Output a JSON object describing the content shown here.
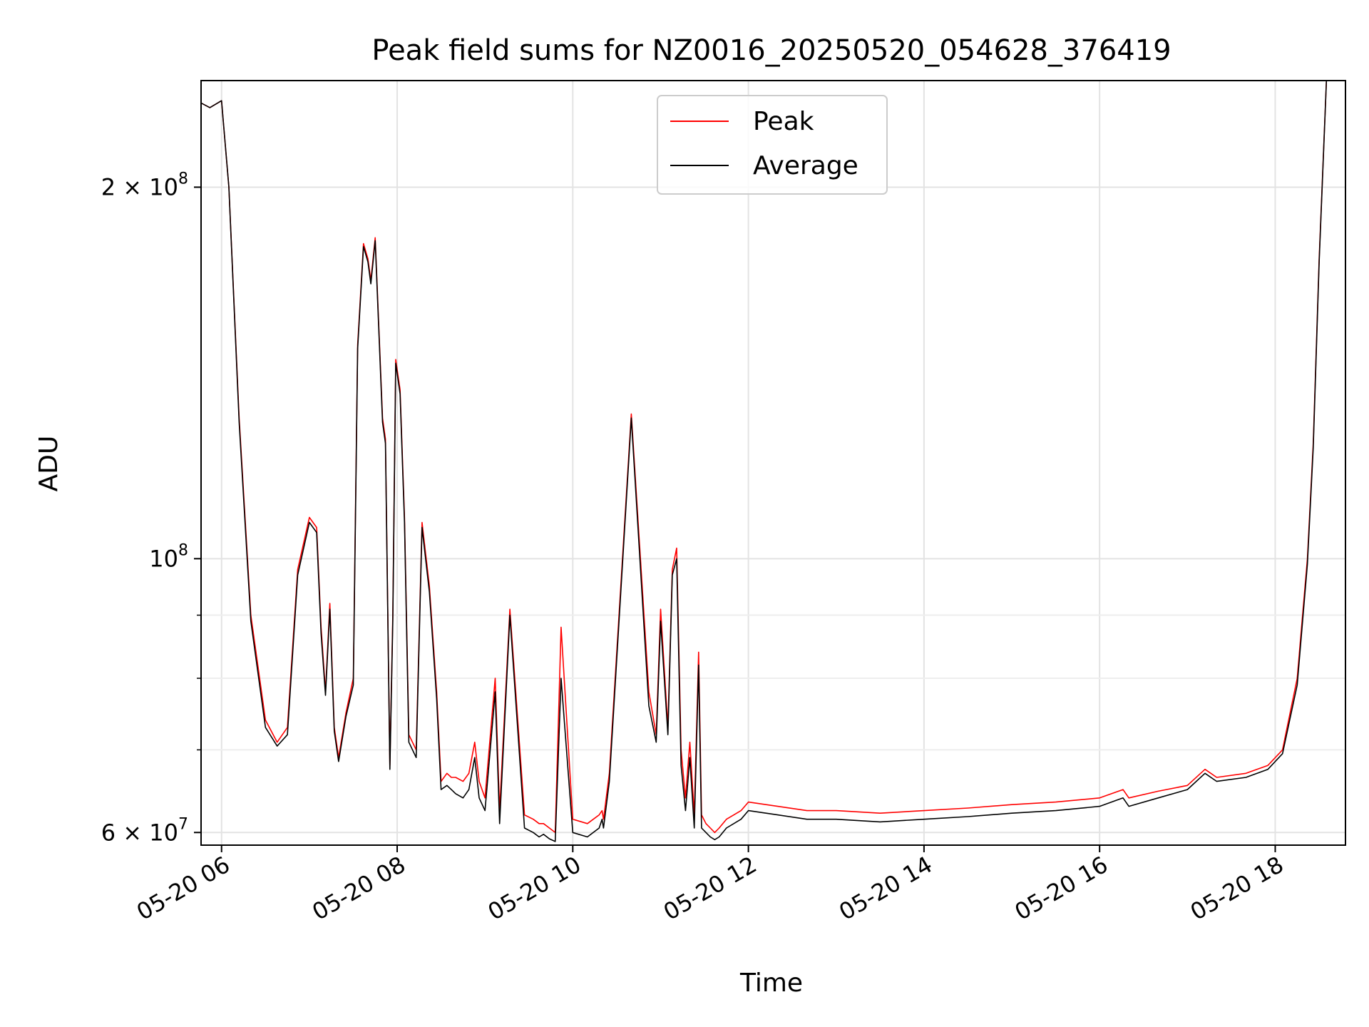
{
  "chart_data": {
    "type": "line",
    "title": "Peak field sums for NZ0016_20250520_054628_376419",
    "xlabel": "Time",
    "ylabel": "ADU",
    "yscale": "log",
    "xlim": [
      "2025-05-20 05:46",
      "2025-05-20 18:48"
    ],
    "ylim": [
      58600000,
      244000000
    ],
    "grid": true,
    "legend_position": "upper center",
    "x_ticks": [
      {
        "value": "2025-05-20 06:00",
        "label": "05-20 06"
      },
      {
        "value": "2025-05-20 08:00",
        "label": "05-20 08"
      },
      {
        "value": "2025-05-20 10:00",
        "label": "05-20 10"
      },
      {
        "value": "2025-05-20 12:00",
        "label": "05-20 12"
      },
      {
        "value": "2025-05-20 14:00",
        "label": "05-20 14"
      },
      {
        "value": "2025-05-20 16:00",
        "label": "05-20 16"
      },
      {
        "value": "2025-05-20 18:00",
        "label": "05-20 18"
      }
    ],
    "y_major_ticks": [
      {
        "value": 60000000,
        "mant": "6",
        "times": "×",
        "base": "10",
        "exp": "7"
      },
      {
        "value": 100000000,
        "mant": "",
        "times": "",
        "base": "10",
        "exp": "8"
      },
      {
        "value": 200000000,
        "mant": "2",
        "times": "×",
        "base": "10",
        "exp": "8"
      }
    ],
    "y_minor_ticks": [
      70000000,
      80000000,
      90000000
    ],
    "series": [
      {
        "name": "Peak",
        "color": "#ff0000",
        "x": [
          "2025-05-20 05:46",
          "2025-05-20 05:52",
          "2025-05-20 06:00",
          "2025-05-20 06:05",
          "2025-05-20 06:12",
          "2025-05-20 06:20",
          "2025-05-20 06:30",
          "2025-05-20 06:38",
          "2025-05-20 06:45",
          "2025-05-20 06:52",
          "2025-05-20 07:00",
          "2025-05-20 07:05",
          "2025-05-20 07:08",
          "2025-05-20 07:11",
          "2025-05-20 07:14",
          "2025-05-20 07:17",
          "2025-05-20 07:20",
          "2025-05-20 07:25",
          "2025-05-20 07:30",
          "2025-05-20 07:33",
          "2025-05-20 07:37",
          "2025-05-20 07:40",
          "2025-05-20 07:42",
          "2025-05-20 07:45",
          "2025-05-20 07:50",
          "2025-05-20 07:52",
          "2025-05-20 07:55",
          "2025-05-20 07:57",
          "2025-05-20 07:59",
          "2025-05-20 08:02",
          "2025-05-20 08:05",
          "2025-05-20 08:08",
          "2025-05-20 08:13",
          "2025-05-20 08:17",
          "2025-05-20 08:22",
          "2025-05-20 08:27",
          "2025-05-20 08:30",
          "2025-05-20 08:34",
          "2025-05-20 08:37",
          "2025-05-20 08:40",
          "2025-05-20 08:45",
          "2025-05-20 08:49",
          "2025-05-20 08:53",
          "2025-05-20 08:56",
          "2025-05-20 09:00",
          "2025-05-20 09:07",
          "2025-05-20 09:10",
          "2025-05-20 09:17",
          "2025-05-20 09:27",
          "2025-05-20 09:33",
          "2025-05-20 09:37",
          "2025-05-20 09:40",
          "2025-05-20 09:44",
          "2025-05-20 09:48",
          "2025-05-20 09:52",
          "2025-05-20 10:00",
          "2025-05-20 10:10",
          "2025-05-20 10:18",
          "2025-05-20 10:20",
          "2025-05-20 10:21",
          "2025-05-20 10:25",
          "2025-05-20 10:40",
          "2025-05-20 10:52",
          "2025-05-20 10:57",
          "2025-05-20 11:00",
          "2025-05-20 11:05",
          "2025-05-20 11:08",
          "2025-05-20 11:11",
          "2025-05-20 11:14",
          "2025-05-20 11:17",
          "2025-05-20 11:20",
          "2025-05-20 11:23",
          "2025-05-20 11:26",
          "2025-05-20 11:28",
          "2025-05-20 11:31",
          "2025-05-20 11:34",
          "2025-05-20 11:37",
          "2025-05-20 11:40",
          "2025-05-20 11:45",
          "2025-05-20 11:55",
          "2025-05-20 12:00",
          "2025-05-20 12:20",
          "2025-05-20 12:40",
          "2025-05-20 13:00",
          "2025-05-20 13:30",
          "2025-05-20 14:00",
          "2025-05-20 14:30",
          "2025-05-20 15:00",
          "2025-05-20 15:30",
          "2025-05-20 16:00",
          "2025-05-20 16:16",
          "2025-05-20 16:20",
          "2025-05-20 16:40",
          "2025-05-20 17:00",
          "2025-05-20 17:12",
          "2025-05-20 17:20",
          "2025-05-20 17:40",
          "2025-05-20 17:55",
          "2025-05-20 18:05",
          "2025-05-20 18:15",
          "2025-05-20 18:22",
          "2025-05-20 18:26",
          "2025-05-20 18:30",
          "2025-05-20 18:35",
          "2025-05-20 18:48"
        ],
        "y": [
          234000000,
          232000000,
          235000000,
          200000000,
          130000000,
          90000000,
          74000000,
          71000000,
          73000000,
          98000000,
          108000000,
          106000000,
          88000000,
          78000000,
          92000000,
          73000000,
          69000000,
          75000000,
          80000000,
          149000000,
          180000000,
          175000000,
          168000000,
          182000000,
          130000000,
          125000000,
          68000000,
          90000000,
          145000000,
          137000000,
          108000000,
          72000000,
          70000000,
          107000000,
          95000000,
          78000000,
          66000000,
          67000000,
          66500000,
          66500000,
          66000000,
          67000000,
          71000000,
          66000000,
          64000000,
          80000000,
          62500000,
          91000000,
          62000000,
          61500000,
          61000000,
          61000000,
          60500000,
          60000000,
          88000000,
          61500000,
          61000000,
          62000000,
          62500000,
          61500000,
          67000000,
          131000000,
          78000000,
          72000000,
          91000000,
          73000000,
          98000000,
          102000000,
          70000000,
          64000000,
          71000000,
          62000000,
          84000000,
          62000000,
          61000000,
          60500000,
          60000000,
          60500000,
          61500000,
          62500000,
          63500000,
          63000000,
          62500000,
          62500000,
          62200000,
          62500000,
          62800000,
          63200000,
          63500000,
          64000000,
          65000000,
          64000000,
          64800000,
          65500000,
          67500000,
          66500000,
          67000000,
          68000000,
          70000000,
          80000000,
          100000000,
          124000000,
          175000000,
          244000000,
          244000000
        ]
      },
      {
        "name": "Average",
        "color": "#000000",
        "x": [
          "2025-05-20 05:46",
          "2025-05-20 05:52",
          "2025-05-20 06:00",
          "2025-05-20 06:05",
          "2025-05-20 06:12",
          "2025-05-20 06:20",
          "2025-05-20 06:30",
          "2025-05-20 06:38",
          "2025-05-20 06:45",
          "2025-05-20 06:52",
          "2025-05-20 07:00",
          "2025-05-20 07:05",
          "2025-05-20 07:08",
          "2025-05-20 07:11",
          "2025-05-20 07:14",
          "2025-05-20 07:17",
          "2025-05-20 07:20",
          "2025-05-20 07:25",
          "2025-05-20 07:30",
          "2025-05-20 07:33",
          "2025-05-20 07:37",
          "2025-05-20 07:40",
          "2025-05-20 07:42",
          "2025-05-20 07:45",
          "2025-05-20 07:50",
          "2025-05-20 07:52",
          "2025-05-20 07:55",
          "2025-05-20 07:57",
          "2025-05-20 07:59",
          "2025-05-20 08:02",
          "2025-05-20 08:05",
          "2025-05-20 08:08",
          "2025-05-20 08:13",
          "2025-05-20 08:17",
          "2025-05-20 08:22",
          "2025-05-20 08:27",
          "2025-05-20 08:30",
          "2025-05-20 08:34",
          "2025-05-20 08:37",
          "2025-05-20 08:40",
          "2025-05-20 08:45",
          "2025-05-20 08:49",
          "2025-05-20 08:53",
          "2025-05-20 08:56",
          "2025-05-20 09:00",
          "2025-05-20 09:07",
          "2025-05-20 09:10",
          "2025-05-20 09:17",
          "2025-05-20 09:27",
          "2025-05-20 09:33",
          "2025-05-20 09:37",
          "2025-05-20 09:40",
          "2025-05-20 09:44",
          "2025-05-20 09:48",
          "2025-05-20 09:52",
          "2025-05-20 10:00",
          "2025-05-20 10:10",
          "2025-05-20 10:18",
          "2025-05-20 10:20",
          "2025-05-20 10:21",
          "2025-05-20 10:25",
          "2025-05-20 10:40",
          "2025-05-20 10:52",
          "2025-05-20 10:57",
          "2025-05-20 11:00",
          "2025-05-20 11:05",
          "2025-05-20 11:08",
          "2025-05-20 11:11",
          "2025-05-20 11:14",
          "2025-05-20 11:17",
          "2025-05-20 11:20",
          "2025-05-20 11:23",
          "2025-05-20 11:26",
          "2025-05-20 11:28",
          "2025-05-20 11:31",
          "2025-05-20 11:34",
          "2025-05-20 11:37",
          "2025-05-20 11:40",
          "2025-05-20 11:45",
          "2025-05-20 11:55",
          "2025-05-20 12:00",
          "2025-05-20 12:20",
          "2025-05-20 12:40",
          "2025-05-20 13:00",
          "2025-05-20 13:30",
          "2025-05-20 14:00",
          "2025-05-20 14:30",
          "2025-05-20 15:00",
          "2025-05-20 15:30",
          "2025-05-20 16:00",
          "2025-05-20 16:16",
          "2025-05-20 16:20",
          "2025-05-20 16:40",
          "2025-05-20 17:00",
          "2025-05-20 17:12",
          "2025-05-20 17:20",
          "2025-05-20 17:40",
          "2025-05-20 17:55",
          "2025-05-20 18:05",
          "2025-05-20 18:15",
          "2025-05-20 18:22",
          "2025-05-20 18:26",
          "2025-05-20 18:30",
          "2025-05-20 18:35",
          "2025-05-20 18:48"
        ],
        "y": [
          234000000,
          232000000,
          235000000,
          200000000,
          129000000,
          89000000,
          73000000,
          70500000,
          72000000,
          97000000,
          107000000,
          105000000,
          87000000,
          77500000,
          91000000,
          72500000,
          68500000,
          74500000,
          79000000,
          148000000,
          179000000,
          174000000,
          167000000,
          181000000,
          129000000,
          124000000,
          67500000,
          89000000,
          144000000,
          136000000,
          107000000,
          71000000,
          69000000,
          106000000,
          94000000,
          77000000,
          65000000,
          65500000,
          65000000,
          64500000,
          64000000,
          65000000,
          69000000,
          64000000,
          62500000,
          78000000,
          61000000,
          90000000,
          60500000,
          60000000,
          59500000,
          59800000,
          59300000,
          59000000,
          80000000,
          60000000,
          59500000,
          60500000,
          61500000,
          60500000,
          66000000,
          130000000,
          76000000,
          71000000,
          89000000,
          72000000,
          97000000,
          100000000,
          68000000,
          62500000,
          69000000,
          60500000,
          82000000,
          60500000,
          60000000,
          59500000,
          59200000,
          59500000,
          60500000,
          61500000,
          62500000,
          62000000,
          61500000,
          61500000,
          61200000,
          61500000,
          61800000,
          62200000,
          62500000,
          63000000,
          64000000,
          63000000,
          64000000,
          65000000,
          67000000,
          66000000,
          66500000,
          67500000,
          69500000,
          79000000,
          99000000,
          123000000,
          174000000,
          244000000,
          244000000
        ]
      }
    ]
  }
}
